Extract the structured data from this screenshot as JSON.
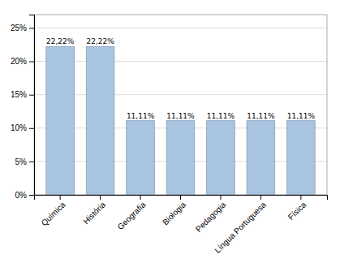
{
  "chart_data": {
    "type": "bar",
    "categories": [
      "Química",
      "História",
      "Geografia",
      "Biologia",
      "Pedagogia",
      "Língua Portuguesa",
      "Física"
    ],
    "values": [
      22.22,
      22.22,
      11.11,
      11.11,
      11.11,
      11.11,
      11.11
    ],
    "value_labels": [
      "22,22%",
      "22,22%",
      "11,11%",
      "11,11%",
      "11,11%",
      "11,11%",
      "11,11%"
    ],
    "color": "#a8c4e0",
    "ylim": [
      0,
      27
    ],
    "yticks": [
      {
        "value": 0,
        "label": "0%"
      },
      {
        "value": 5,
        "label": "5%"
      },
      {
        "value": 10,
        "label": "10%"
      },
      {
        "value": 15,
        "label": "15%"
      },
      {
        "value": 20,
        "label": "20%"
      },
      {
        "value": 25,
        "label": "25%"
      }
    ],
    "grid": true,
    "data_labels": true
  }
}
